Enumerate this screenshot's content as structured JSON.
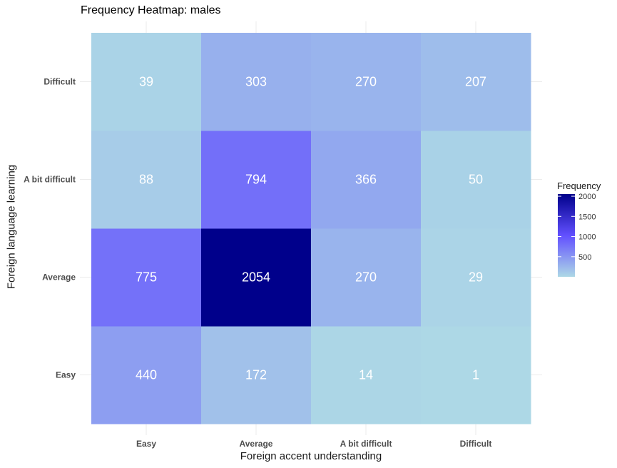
{
  "chart_data": {
    "type": "heatmap",
    "title": "Frequency Heatmap: males",
    "xlabel": "Foreign accent understanding",
    "ylabel": "Foreign language learning",
    "x_categories": [
      "Easy",
      "Average",
      "A bit difficult",
      "Difficult"
    ],
    "y_categories": [
      "Easy",
      "Average",
      "A bit difficult",
      "Difficult"
    ],
    "values": [
      [
        440,
        172,
        14,
        1
      ],
      [
        775,
        2054,
        270,
        29
      ],
      [
        88,
        794,
        366,
        50
      ],
      [
        39,
        303,
        270,
        207
      ]
    ],
    "legend": {
      "title": "Frequency",
      "ticks": [
        500,
        1000,
        1500,
        2000
      ],
      "range": [
        1,
        2054
      ],
      "low_color": "#add8e6",
      "mid_color": "#6250ff",
      "high_color": "#00008b"
    },
    "grid": true,
    "legend_position": "right"
  }
}
